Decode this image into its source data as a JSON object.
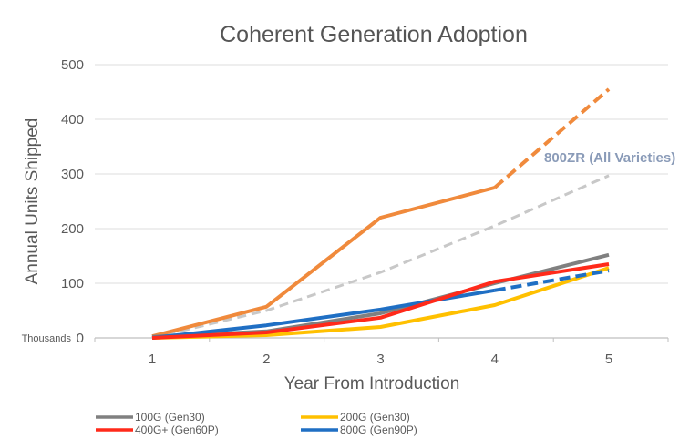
{
  "chart_data": {
    "type": "line",
    "title": "Coherent Generation Adoption",
    "xlabel": "Year From Introduction",
    "ylabel": "Annual Units  Shipped",
    "yunit_label": "Thousands",
    "x": [
      1,
      2,
      3,
      4,
      5
    ],
    "xticks": [
      "1",
      "2",
      "3",
      "4",
      "5"
    ],
    "ylim": [
      0,
      500
    ],
    "yticks": [
      "0",
      "100",
      "200",
      "300",
      "400",
      "500"
    ],
    "grid": "horizontal",
    "legend_position": "bottom",
    "series": [
      {
        "name": "100G (Gen30)",
        "color": "#808080",
        "values": [
          2,
          12,
          45,
          100,
          152
        ],
        "dashed_from_index": null,
        "in_legend": true
      },
      {
        "name": "200G (Gen30)",
        "color": "#ffc000",
        "values": [
          0,
          5,
          20,
          60,
          128
        ],
        "dashed_from_index": null,
        "in_legend": true
      },
      {
        "name": "400G+ (Gen60P)",
        "color": "#ff2a1a",
        "values": [
          0,
          10,
          37,
          103,
          135
        ],
        "dashed_from_index": null,
        "in_legend": true
      },
      {
        "name": "800G (Gen90P)",
        "color": "#1f6fc4",
        "values": [
          0,
          23,
          52,
          87,
          123
        ],
        "dashed_from_index": 3,
        "in_legend": true
      },
      {
        "name": "800ZR (All Varieties)",
        "color": "#f08a3c",
        "values": [
          3,
          57,
          220,
          275,
          455
        ],
        "dashed_from_index": 3,
        "in_legend": false,
        "annotation": true
      },
      {
        "color": "#c8c8c8",
        "values": [
          0,
          50,
          120,
          205,
          297
        ],
        "dashed_from_index": 0,
        "in_legend": false
      }
    ]
  }
}
